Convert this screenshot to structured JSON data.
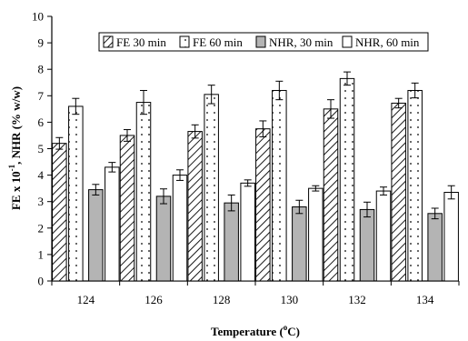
{
  "chart_data": {
    "type": "bar",
    "title": "",
    "xlabel": "Temperature (°C)",
    "xlabel_main": "Temperature (",
    "xlabel_sup": "o",
    "xlabel_tail": "C)",
    "ylabel_a": "FE x 10",
    "ylabel_sup": "-1",
    "ylabel_b": ", NHR (% w/w)",
    "ylim": [
      0,
      10
    ],
    "yticks": [
      "0",
      "1",
      "2",
      "3",
      "4",
      "5",
      "6",
      "7",
      "8",
      "9",
      "10"
    ],
    "categories": [
      "124",
      "126",
      "128",
      "130",
      "132",
      "134"
    ],
    "grid": false,
    "legend_position": "top",
    "series": [
      {
        "name": "FE 30 min",
        "pattern": "hatch",
        "values": [
          5.2,
          5.5,
          5.65,
          5.75,
          6.5,
          6.72
        ],
        "errors": [
          0.22,
          0.22,
          0.25,
          0.3,
          0.35,
          0.18
        ]
      },
      {
        "name": "FE 60 min",
        "pattern": "dots",
        "values": [
          6.6,
          6.75,
          7.05,
          7.2,
          7.65,
          7.2
        ],
        "errors": [
          0.3,
          0.45,
          0.35,
          0.35,
          0.25,
          0.28
        ]
      },
      {
        "name": "NHR, 30 min",
        "pattern": "gray",
        "values": [
          3.45,
          3.2,
          2.95,
          2.8,
          2.7,
          2.55
        ],
        "errors": [
          0.2,
          0.28,
          0.3,
          0.25,
          0.28,
          0.2
        ]
      },
      {
        "name": "NHR, 60 min",
        "pattern": "white",
        "values": [
          4.3,
          4.0,
          3.7,
          3.5,
          3.4,
          3.35
        ],
        "errors": [
          0.18,
          0.2,
          0.12,
          0.1,
          0.15,
          0.25
        ]
      }
    ]
  }
}
